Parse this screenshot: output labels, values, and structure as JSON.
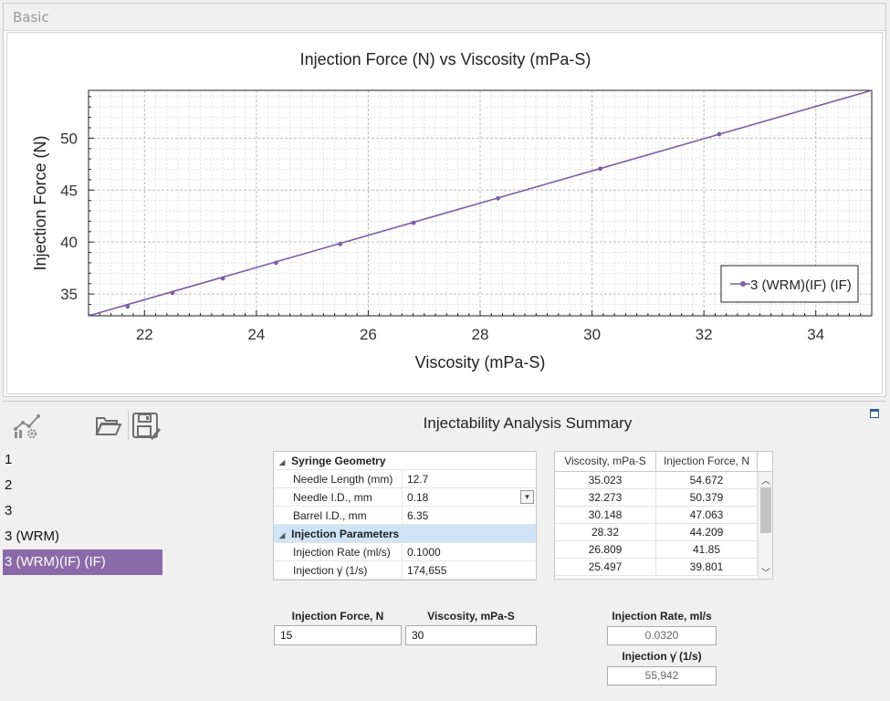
{
  "tab": {
    "label": "Basic"
  },
  "chart_data": {
    "type": "line",
    "title": "Injection Force (N) vs Viscosity (mPa-S)",
    "xlabel": "Viscosity (mPa-S)",
    "ylabel": "Injection Force (N)",
    "xlim": [
      21.0,
      35.0
    ],
    "ylim": [
      32.9,
      54.6
    ],
    "xticks": [
      22,
      24,
      26,
      28,
      30,
      32,
      34
    ],
    "yticks": [
      35,
      40,
      45,
      50
    ],
    "grid": true,
    "legend_position": "bottom-right",
    "series": [
      {
        "name": "3 (WRM)(IF) (IF)",
        "color": "#7b5ea7",
        "points": [
          {
            "x": 21.7,
            "y": 33.8
          },
          {
            "x": 22.5,
            "y": 35.1
          },
          {
            "x": 23.4,
            "y": 36.5
          },
          {
            "x": 24.35,
            "y": 38.0
          },
          {
            "x": 25.497,
            "y": 39.801
          },
          {
            "x": 26.809,
            "y": 41.85
          },
          {
            "x": 28.32,
            "y": 44.209
          },
          {
            "x": 30.148,
            "y": 47.063
          },
          {
            "x": 32.273,
            "y": 50.379
          }
        ],
        "line": [
          {
            "x": 21.0,
            "y": 32.9
          },
          {
            "x": 35.0,
            "y": 54.6
          }
        ]
      }
    ]
  },
  "toolbar": {
    "analysis_icon": "line-chart-gear-icon",
    "open_icon": "folder-open-icon",
    "save_icon": "save-edit-icon"
  },
  "summary": {
    "title": "Injectability Analysis Summary"
  },
  "sets": {
    "items": [
      "1",
      "2",
      "3",
      "3 (WRM)",
      "3 (WRM)(IF) (IF)"
    ],
    "selected": "3 (WRM)(IF) (IF)"
  },
  "syringe": {
    "category": "Syringe Geometry",
    "needle_length_label": "Needle Length (mm)",
    "needle_length_value": "12.7",
    "needle_id_label": "Needle I.D., mm",
    "needle_id_value": "0.18",
    "barrel_id_label": "Barrel I.D., mm",
    "barrel_id_value": "6.35"
  },
  "injection": {
    "category": "Injection Parameters",
    "rate_label": "Injection Rate (ml/s)",
    "rate_value": "0.1000",
    "shear_label": "Injection γ̇ (1/s)",
    "shear_value": "174,655"
  },
  "table": {
    "headers": [
      "Viscosity, mPa-S",
      "Injection Force, N"
    ],
    "rows": [
      [
        "35.023",
        "54.672"
      ],
      [
        "32.273",
        "50.379"
      ],
      [
        "30.148",
        "47.063"
      ],
      [
        "28.32",
        "44.209"
      ],
      [
        "26.809",
        "41.85"
      ],
      [
        "25.497",
        "39.801"
      ]
    ]
  },
  "calc": {
    "force_label": "Injection Force, N",
    "force_value": "15",
    "viscosity_label": "Viscosity, mPa-S",
    "viscosity_value": "30",
    "rate_label": "Injection Rate, ml/s",
    "rate_value": "0.0320",
    "shear_label": "Injection γ̇ (1/s)",
    "shear_value": "55,942"
  }
}
